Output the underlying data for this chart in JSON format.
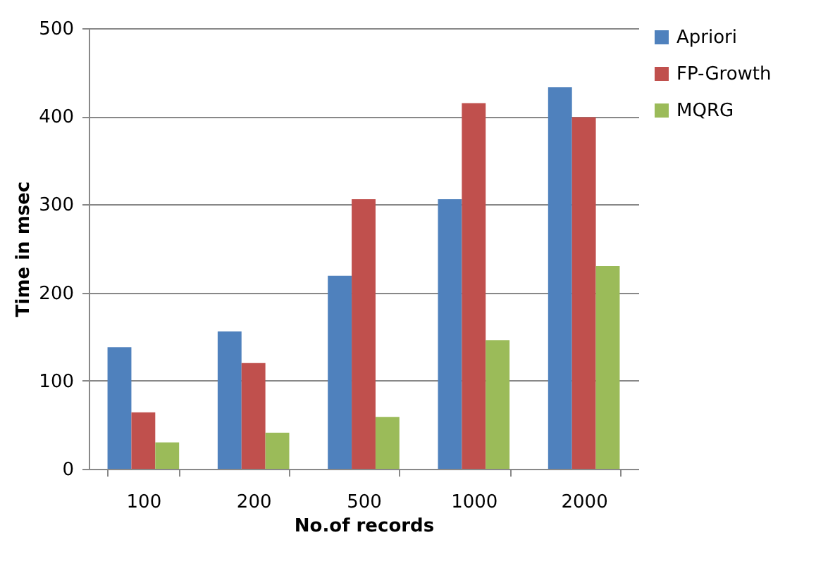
{
  "chart_data": {
    "type": "bar",
    "xlabel": "No.of records",
    "ylabel": "Time in msec",
    "categories": [
      "100",
      "200",
      "500",
      "1000",
      "2000"
    ],
    "series": [
      {
        "name": "Apriori",
        "color": "#4f81bd",
        "values": [
          138,
          156,
          219,
          306,
          433
        ]
      },
      {
        "name": "FP-Growth",
        "color": "#c0504d",
        "values": [
          64,
          120,
          306,
          415,
          399
        ]
      },
      {
        "name": "MQRG",
        "color": "#9bbb59",
        "values": [
          30,
          41,
          59,
          146,
          230
        ]
      }
    ],
    "ylim": [
      0,
      500
    ],
    "yticks": [
      0,
      100,
      200,
      300,
      400,
      500
    ],
    "grid": "y",
    "legend": "right"
  }
}
